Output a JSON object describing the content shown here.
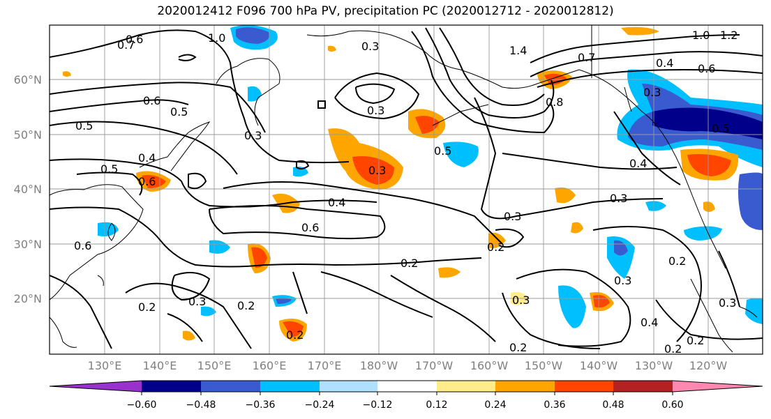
{
  "title": "2020012412 F096 700 hPa PV, precipitation PC (2020012712 - 2020012812)",
  "map": {
    "lat_labels": [
      "60°N",
      "50°N",
      "40°N",
      "30°N",
      "20°N"
    ],
    "lon_labels": [
      "130°E",
      "140°E",
      "150°E",
      "160°E",
      "170°E",
      "180°W",
      "170°W",
      "160°W",
      "150°W",
      "140°W",
      "130°W",
      "120°W"
    ],
    "contour_labels": [
      "0.6",
      "0.7",
      "1.0",
      "0.3",
      "1.4",
      "0.7",
      "1.0",
      "1.2",
      "0.6",
      "0.4",
      "0.8",
      "0.3",
      "0.6",
      "0.5",
      "0.5",
      "0.3",
      "0.3",
      "0.5",
      "0.4",
      "0.5",
      "0.6",
      "0.3",
      "0.4",
      "0.5",
      "0.3",
      "0.4",
      "0.6",
      "0.3",
      "0.2",
      "0.6",
      "0.2",
      "0.2",
      "0.3",
      "0.2",
      "0.2",
      "0.3",
      "0.4",
      "0.3",
      "0.2",
      "0.2",
      "0.2",
      "0.2",
      "0.3"
    ]
  },
  "colorbar": {
    "ticks": [
      "−0.60",
      "−0.48",
      "−0.36",
      "−0.24",
      "−0.12",
      "0.12",
      "0.24",
      "0.36",
      "0.48",
      "0.60"
    ],
    "colors": [
      "#9932cc",
      "#00008b",
      "#3a5bd0",
      "#00bfff",
      "#b0e0ff",
      "#ffffff",
      "#ffec8b",
      "#ffa500",
      "#ff4500",
      "#b22222",
      "#ff88b0"
    ]
  }
}
